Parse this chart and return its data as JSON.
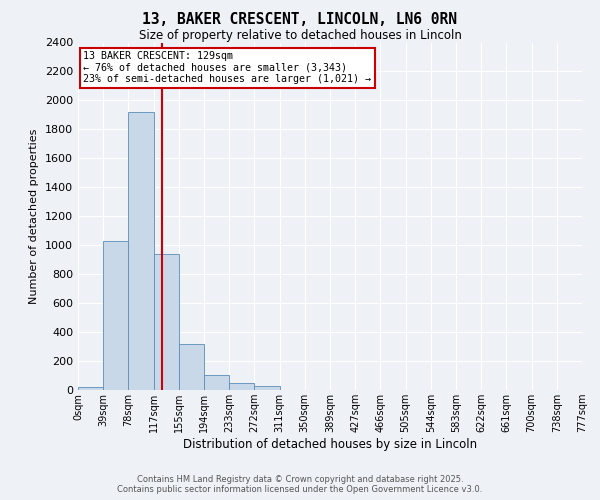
{
  "title": "13, BAKER CRESCENT, LINCOLN, LN6 0RN",
  "subtitle": "Size of property relative to detached houses in Lincoln",
  "xlabel": "Distribution of detached houses by size in Lincoln",
  "ylabel": "Number of detached properties",
  "bin_labels": [
    "0sqm",
    "39sqm",
    "78sqm",
    "117sqm",
    "155sqm",
    "194sqm",
    "233sqm",
    "272sqm",
    "311sqm",
    "350sqm",
    "389sqm",
    "427sqm",
    "466sqm",
    "505sqm",
    "544sqm",
    "583sqm",
    "622sqm",
    "661sqm",
    "700sqm",
    "738sqm",
    "777sqm"
  ],
  "bar_values": [
    20,
    1030,
    1920,
    940,
    315,
    105,
    50,
    25,
    0,
    0,
    0,
    0,
    0,
    0,
    0,
    0,
    0,
    0,
    0,
    0
  ],
  "bar_color": "#c8d8e8",
  "bar_edge_color": "#5b8db8",
  "vline_x": 3.32,
  "vline_color": "#cc0000",
  "ylim": [
    0,
    2400
  ],
  "yticks": [
    0,
    200,
    400,
    600,
    800,
    1000,
    1200,
    1400,
    1600,
    1800,
    2000,
    2200,
    2400
  ],
  "annotation_text": "13 BAKER CRESCENT: 129sqm\n← 76% of detached houses are smaller (3,343)\n23% of semi-detached houses are larger (1,021) →",
  "annotation_box_color": "#ffffff",
  "annotation_box_edge": "#cc0000",
  "background_color": "#eef2f7",
  "grid_color": "#ffffff",
  "footer_line1": "Contains HM Land Registry data © Crown copyright and database right 2025.",
  "footer_line2": "Contains public sector information licensed under the Open Government Licence v3.0."
}
